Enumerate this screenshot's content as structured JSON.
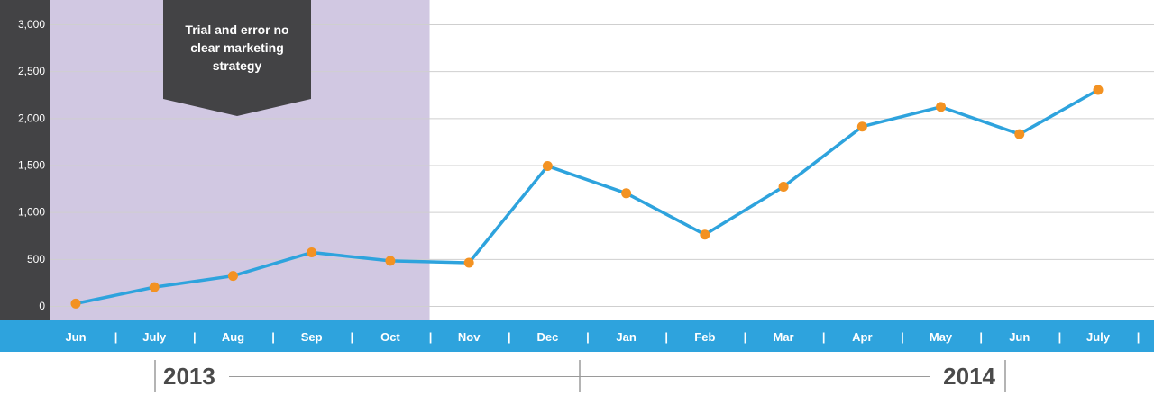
{
  "chart_data": {
    "type": "line",
    "categories": [
      "Jun",
      "July",
      "Aug",
      "Sep",
      "Oct",
      "Nov",
      "Dec",
      "Jan",
      "Feb",
      "Mar",
      "Apr",
      "May",
      "Jun",
      "July"
    ],
    "values": [
      25,
      200,
      320,
      570,
      480,
      460,
      1490,
      1200,
      760,
      1270,
      1910,
      2120,
      1830,
      2300
    ],
    "y_ticks": [
      "0",
      "500",
      "1,000",
      "1,500",
      "2,000",
      "2,500",
      "3,000"
    ],
    "ylim": [
      0,
      3000
    ],
    "grid": true,
    "years": [
      "2013",
      "2014"
    ],
    "annotation": "Trial and error no clear marketing strategy",
    "highlight_range": [
      "Jun",
      "Oct"
    ],
    "colors": {
      "line": "#2ea3dd",
      "marker": "#f39222",
      "highlight": "#d1c8e2",
      "axis_bg": "#434345",
      "month_bar": "#2ea3dd",
      "year_text": "#4a4a4a"
    }
  }
}
